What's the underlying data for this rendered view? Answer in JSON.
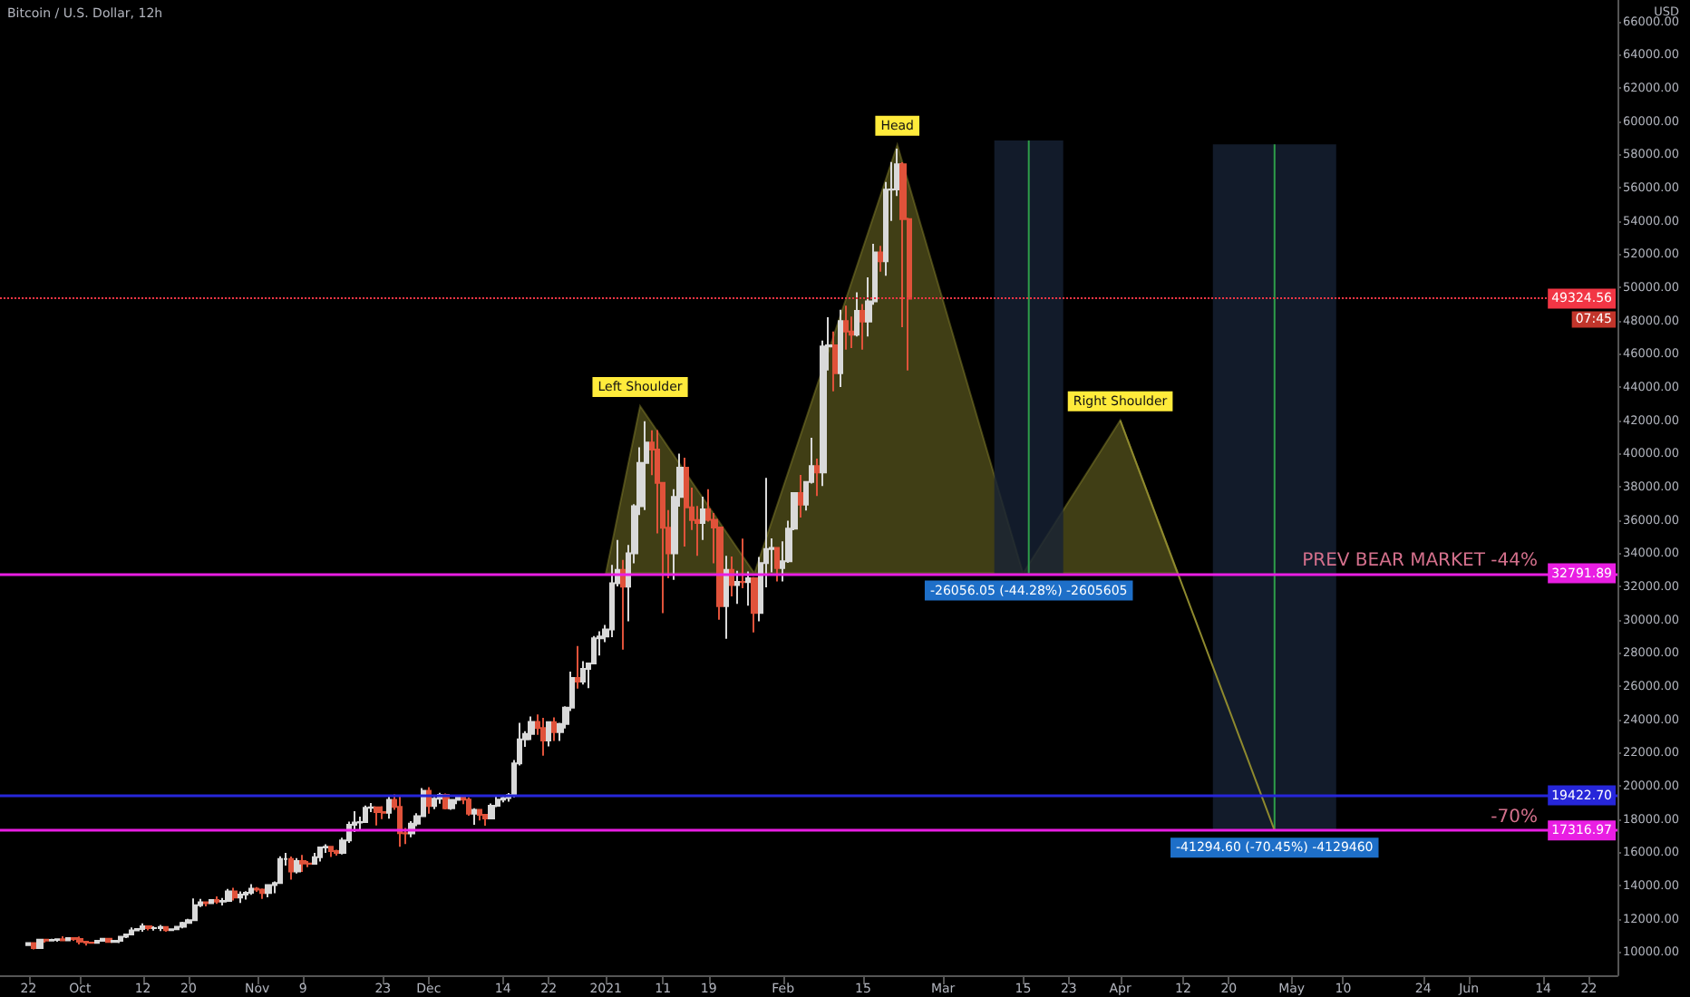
{
  "chart_data": {
    "type": "candlestick",
    "title": "Bitcoin / U.S. Dollar, 12h",
    "ylabel": "USD",
    "xlim": [
      "2020-09-17",
      "2021-06-27"
    ],
    "xticks": [
      {
        "value": "2020-09-22",
        "label": "22"
      },
      {
        "value": "2020-10-01",
        "label": "Oct"
      },
      {
        "value": "2020-10-12",
        "label": "12"
      },
      {
        "value": "2020-10-20",
        "label": "20"
      },
      {
        "value": "2020-11-01",
        "label": "Nov"
      },
      {
        "value": "2020-11-09",
        "label": "9"
      },
      {
        "value": "2020-11-23",
        "label": "23"
      },
      {
        "value": "2020-12-01",
        "label": "Dec"
      },
      {
        "value": "2020-12-14",
        "label": "14"
      },
      {
        "value": "2020-12-22",
        "label": "22"
      },
      {
        "value": "2021-01-01",
        "label": "2021"
      },
      {
        "value": "2021-01-11",
        "label": "11"
      },
      {
        "value": "2021-01-19",
        "label": "19"
      },
      {
        "value": "2021-02-01",
        "label": "Feb"
      },
      {
        "value": "2021-02-15",
        "label": "15"
      },
      {
        "value": "2021-03-01",
        "label": "Mar"
      },
      {
        "value": "2021-03-15",
        "label": "15"
      },
      {
        "value": "2021-03-23",
        "label": "23"
      },
      {
        "value": "2021-04-01",
        "label": "Apr"
      },
      {
        "value": "2021-04-12",
        "label": "12"
      },
      {
        "value": "2021-04-20",
        "label": "20"
      },
      {
        "value": "2021-05-01",
        "label": "May"
      },
      {
        "value": "2021-05-10",
        "label": "10"
      },
      {
        "value": "2021-05-24",
        "label": "24"
      },
      {
        "value": "2021-06-01",
        "label": "Jun"
      },
      {
        "value": "2021-06-14",
        "label": "14"
      },
      {
        "value": "2021-06-22",
        "label": "22"
      }
    ],
    "ylim": [
      8600,
      67300
    ],
    "yticks": [
      {
        "value": 10000,
        "label": "10000.00"
      },
      {
        "value": 12000,
        "label": "12000.00"
      },
      {
        "value": 14000,
        "label": "14000.00"
      },
      {
        "value": 16000,
        "label": "16000.00"
      },
      {
        "value": 18000,
        "label": "18000.00"
      },
      {
        "value": 20000,
        "label": "20000.00"
      },
      {
        "value": 22000,
        "label": "22000.00"
      },
      {
        "value": 24000,
        "label": "24000.00"
      },
      {
        "value": 26000,
        "label": "26000.00"
      },
      {
        "value": 28000,
        "label": "28000.00"
      },
      {
        "value": 30000,
        "label": "30000.00"
      },
      {
        "value": 32000,
        "label": "32000.00"
      },
      {
        "value": 34000,
        "label": "34000.00"
      },
      {
        "value": 36000,
        "label": "36000.00"
      },
      {
        "value": 38000,
        "label": "38000.00"
      },
      {
        "value": 40000,
        "label": "40000.00"
      },
      {
        "value": 42000,
        "label": "42000.00"
      },
      {
        "value": 44000,
        "label": "44000.00"
      },
      {
        "value": 46000,
        "label": "46000.00"
      },
      {
        "value": 48000,
        "label": "48000.00"
      },
      {
        "value": 50000,
        "label": "50000.00"
      },
      {
        "value": 52000,
        "label": "52000.00"
      },
      {
        "value": 54000,
        "label": "54000.00"
      },
      {
        "value": 56000,
        "label": "56000.00"
      },
      {
        "value": 58000,
        "label": "58000.00"
      },
      {
        "value": 60000,
        "label": "60000.00"
      },
      {
        "value": 62000,
        "label": "62000.00"
      },
      {
        "value": 64000,
        "label": "64000.00"
      },
      {
        "value": 66000,
        "label": "66000.00"
      }
    ],
    "series": [
      {
        "type": "candlestick",
        "x": [
          "2020-09-22",
          "2020-09-23",
          "2020-09-24",
          "2020-09-25",
          "2020-09-26",
          "2020-09-27",
          "2020-09-28",
          "2020-09-29",
          "2020-09-30",
          "2020-10-01",
          "2020-10-02",
          "2020-10-03",
          "2020-10-04",
          "2020-10-05",
          "2020-10-06",
          "2020-10-07",
          "2020-10-08",
          "2020-10-09",
          "2020-10-10",
          "2020-10-11",
          "2020-10-12",
          "2020-10-13",
          "2020-10-14",
          "2020-10-15",
          "2020-10-16",
          "2020-10-17",
          "2020-10-18",
          "2020-10-19",
          "2020-10-20",
          "2020-10-21",
          "2020-10-22",
          "2020-10-23",
          "2020-10-24",
          "2020-10-25",
          "2020-10-26",
          "2020-10-27",
          "2020-10-28",
          "2020-10-29",
          "2020-10-30",
          "2020-10-31",
          "2020-11-01",
          "2020-11-02",
          "2020-11-03",
          "2020-11-04",
          "2020-11-05",
          "2020-11-06",
          "2020-11-07",
          "2020-11-08",
          "2020-11-09",
          "2020-11-10",
          "2020-11-11",
          "2020-11-12",
          "2020-11-13",
          "2020-11-14",
          "2020-11-15",
          "2020-11-16",
          "2020-11-17",
          "2020-11-18",
          "2020-11-19",
          "2020-11-20",
          "2020-11-21",
          "2020-11-22",
          "2020-11-23",
          "2020-11-24",
          "2020-11-25",
          "2020-11-26",
          "2020-11-27",
          "2020-11-28",
          "2020-11-29",
          "2020-11-30",
          "2020-12-01",
          "2020-12-02",
          "2020-12-03",
          "2020-12-04",
          "2020-12-05",
          "2020-12-06",
          "2020-12-07",
          "2020-12-08",
          "2020-12-09",
          "2020-12-10",
          "2020-12-11",
          "2020-12-12",
          "2020-12-13",
          "2020-12-14",
          "2020-12-15",
          "2020-12-16",
          "2020-12-17",
          "2020-12-18",
          "2020-12-19",
          "2020-12-20",
          "2020-12-21",
          "2020-12-22",
          "2020-12-23",
          "2020-12-24",
          "2020-12-25",
          "2020-12-26",
          "2020-12-27",
          "2020-12-28",
          "2020-12-29",
          "2020-12-30",
          "2020-12-31",
          "2021-01-01",
          "2021-01-02",
          "2021-01-03",
          "2021-01-04",
          "2021-01-05",
          "2021-01-06",
          "2021-01-07",
          "2021-01-08",
          "2021-01-09",
          "2021-01-10",
          "2021-01-11",
          "2021-01-12",
          "2021-01-13",
          "2021-01-14",
          "2021-01-15",
          "2021-01-16",
          "2021-01-17",
          "2021-01-18",
          "2021-01-19",
          "2021-01-20",
          "2021-01-21",
          "2021-01-22",
          "2021-01-23",
          "2021-01-24",
          "2021-01-25",
          "2021-01-26",
          "2021-01-27",
          "2021-01-28",
          "2021-01-29",
          "2021-01-30",
          "2021-01-31",
          "2021-02-01",
          "2021-02-02",
          "2021-02-03",
          "2021-02-04",
          "2021-02-05",
          "2021-02-06",
          "2021-02-07",
          "2021-02-08",
          "2021-02-09",
          "2021-02-10",
          "2021-02-11",
          "2021-02-12",
          "2021-02-13",
          "2021-02-14",
          "2021-02-15",
          "2021-02-16",
          "2021-02-17",
          "2021-02-18",
          "2021-02-19",
          "2021-02-20",
          "2021-02-21",
          "2021-02-22",
          "2021-02-23"
        ],
        "ohlc": [
          [
            10420,
            10580,
            10360,
            10530
          ],
          [
            10530,
            10540,
            10150,
            10240
          ],
          [
            10240,
            10790,
            10200,
            10740
          ],
          [
            10740,
            10760,
            10560,
            10690
          ],
          [
            10690,
            10790,
            10650,
            10730
          ],
          [
            10730,
            10800,
            10620,
            10770
          ],
          [
            10770,
            10950,
            10650,
            10700
          ],
          [
            10700,
            10860,
            10650,
            10840
          ],
          [
            10840,
            10850,
            10670,
            10780
          ],
          [
            10780,
            10930,
            10450,
            10620
          ],
          [
            10620,
            10640,
            10380,
            10570
          ],
          [
            10570,
            10600,
            10500,
            10550
          ],
          [
            10550,
            10700,
            10530,
            10670
          ],
          [
            10670,
            10800,
            10620,
            10790
          ],
          [
            10790,
            10800,
            10550,
            10600
          ],
          [
            10600,
            10690,
            10570,
            10670
          ],
          [
            10670,
            10960,
            10530,
            10920
          ],
          [
            10920,
            11100,
            10830,
            11060
          ],
          [
            11060,
            11480,
            11060,
            11300
          ],
          [
            11300,
            11440,
            11280,
            11380
          ],
          [
            11380,
            11720,
            11220,
            11540
          ],
          [
            11540,
            11560,
            11300,
            11430
          ],
          [
            11430,
            11550,
            11290,
            11430
          ],
          [
            11430,
            11630,
            11260,
            11510
          ],
          [
            11510,
            11540,
            11220,
            11320
          ],
          [
            11320,
            11420,
            11310,
            11370
          ],
          [
            11370,
            11530,
            11350,
            11520
          ],
          [
            11520,
            11820,
            11420,
            11750
          ],
          [
            11750,
            12000,
            11690,
            11920
          ],
          [
            11920,
            13220,
            11900,
            12820
          ],
          [
            12820,
            13200,
            12700,
            12990
          ],
          [
            12990,
            13030,
            12740,
            12940
          ],
          [
            12940,
            13170,
            12900,
            13130
          ],
          [
            13130,
            13350,
            12900,
            13030
          ],
          [
            13030,
            13250,
            12800,
            13070
          ],
          [
            13070,
            13790,
            13060,
            13650
          ],
          [
            13650,
            13860,
            13100,
            13280
          ],
          [
            13280,
            13650,
            12950,
            13460
          ],
          [
            13460,
            13660,
            13150,
            13560
          ],
          [
            13560,
            14080,
            13440,
            13810
          ],
          [
            13810,
            13900,
            13620,
            13760
          ],
          [
            13760,
            13820,
            13200,
            13550
          ],
          [
            13550,
            14070,
            13290,
            14030
          ],
          [
            14030,
            14250,
            13540,
            14150
          ],
          [
            14150,
            15760,
            14100,
            15590
          ],
          [
            15590,
            15970,
            15200,
            15590
          ],
          [
            15590,
            15750,
            14350,
            14840
          ],
          [
            14840,
            15650,
            14720,
            15480
          ],
          [
            15480,
            15840,
            14820,
            15330
          ],
          [
            15330,
            15480,
            15110,
            15310
          ],
          [
            15310,
            15960,
            15290,
            15700
          ],
          [
            15700,
            16340,
            15440,
            16290
          ],
          [
            16290,
            16480,
            15960,
            16330
          ],
          [
            16330,
            16330,
            15720,
            16070
          ],
          [
            16070,
            16150,
            15800,
            15960
          ],
          [
            15960,
            16880,
            15870,
            16720
          ],
          [
            16720,
            17850,
            16560,
            17650
          ],
          [
            17650,
            18480,
            17220,
            17790
          ],
          [
            17790,
            18150,
            17350,
            17820
          ],
          [
            17820,
            18810,
            17760,
            18680
          ],
          [
            18680,
            18960,
            18420,
            18710
          ],
          [
            18710,
            18740,
            17620,
            18420
          ],
          [
            18420,
            18770,
            18000,
            18380
          ],
          [
            18380,
            19420,
            18030,
            19160
          ],
          [
            19160,
            19490,
            18550,
            18730
          ],
          [
            18730,
            19370,
            16330,
            17150
          ],
          [
            17150,
            17470,
            16500,
            17140
          ],
          [
            17140,
            17880,
            16900,
            17720
          ],
          [
            17720,
            18350,
            17570,
            18180
          ],
          [
            18180,
            19860,
            18180,
            19700
          ],
          [
            19700,
            19920,
            18330,
            18790
          ],
          [
            18790,
            19330,
            18600,
            19220
          ],
          [
            19220,
            19580,
            18920,
            19450
          ],
          [
            19450,
            19540,
            18580,
            18650
          ],
          [
            18650,
            19180,
            18550,
            19150
          ],
          [
            19150,
            19420,
            18900,
            19360
          ],
          [
            19360,
            19420,
            18900,
            19170
          ],
          [
            19170,
            19300,
            18200,
            18320
          ],
          [
            18320,
            18650,
            17650,
            18550
          ],
          [
            18550,
            18570,
            17920,
            18250
          ],
          [
            18250,
            18280,
            17600,
            18040
          ],
          [
            18040,
            18940,
            18020,
            18800
          ],
          [
            18800,
            19400,
            18720,
            19170
          ],
          [
            19170,
            19350,
            19000,
            19270
          ],
          [
            19270,
            19570,
            19050,
            19440
          ],
          [
            19440,
            21560,
            19300,
            21350
          ],
          [
            21350,
            23800,
            21230,
            22800
          ],
          [
            22800,
            23290,
            22350,
            23130
          ],
          [
            23130,
            24170,
            22760,
            23850
          ],
          [
            23850,
            24300,
            23070,
            23480
          ],
          [
            23480,
            24100,
            21820,
            22730
          ],
          [
            22730,
            23840,
            22370,
            23830
          ],
          [
            23830,
            24120,
            22700,
            23240
          ],
          [
            23240,
            23800,
            22700,
            23730
          ],
          [
            23730,
            24790,
            23450,
            24710
          ],
          [
            24710,
            26870,
            24500,
            26490
          ],
          [
            26490,
            28420,
            25850,
            26280
          ],
          [
            26280,
            27500,
            26100,
            27040
          ],
          [
            27040,
            27400,
            25880,
            27370
          ],
          [
            27370,
            29020,
            27330,
            28880
          ],
          [
            28880,
            29300,
            27850,
            28990
          ],
          [
            28990,
            29680,
            28650,
            29410
          ],
          [
            29410,
            33300,
            28950,
            32200
          ],
          [
            32200,
            34800,
            32000,
            33000
          ],
          [
            33000,
            33600,
            28200,
            31990
          ],
          [
            31990,
            34500,
            29900,
            33990
          ],
          [
            33990,
            36950,
            33400,
            36830
          ],
          [
            36830,
            40380,
            36300,
            39440
          ],
          [
            39440,
            41950,
            36600,
            40670
          ],
          [
            40670,
            41400,
            38700,
            40240
          ],
          [
            40240,
            41420,
            35200,
            38240
          ],
          [
            38240,
            38270,
            30400,
            35540
          ],
          [
            35540,
            36600,
            32500,
            34000
          ],
          [
            34000,
            37850,
            32400,
            37390
          ],
          [
            37390,
            40000,
            36800,
            39150
          ],
          [
            39150,
            39750,
            34400,
            36770
          ],
          [
            36770,
            37950,
            35400,
            36000
          ],
          [
            36000,
            36850,
            33850,
            35820
          ],
          [
            35820,
            37400,
            34800,
            36640
          ],
          [
            36640,
            37850,
            35900,
            36010
          ],
          [
            36010,
            36420,
            33400,
            35550
          ],
          [
            35550,
            35600,
            30000,
            30820
          ],
          [
            30820,
            33850,
            28850,
            33000
          ],
          [
            33000,
            33800,
            31400,
            32090
          ],
          [
            32090,
            32950,
            30950,
            32280
          ],
          [
            32280,
            34880,
            31900,
            32260
          ],
          [
            32260,
            32900,
            30840,
            32500
          ],
          [
            32500,
            32560,
            29240,
            30410
          ],
          [
            30410,
            33780,
            29900,
            33410
          ],
          [
            33410,
            38530,
            31950,
            34260
          ],
          [
            34260,
            34900,
            32850,
            34320
          ],
          [
            34320,
            34340,
            32300,
            33110
          ],
          [
            33110,
            34720,
            32300,
            33520
          ],
          [
            33520,
            35960,
            33420,
            35480
          ],
          [
            35480,
            37660,
            35380,
            37620
          ],
          [
            37620,
            38710,
            36150,
            36930
          ],
          [
            36930,
            38310,
            36570,
            38290
          ],
          [
            38290,
            40950,
            38200,
            39250
          ],
          [
            39250,
            39700,
            37450,
            38870
          ],
          [
            38870,
            46800,
            38050,
            46450
          ],
          [
            46450,
            48200,
            45000,
            46510
          ],
          [
            46510,
            47350,
            43750,
            44840
          ],
          [
            44840,
            48650,
            44000,
            47970
          ],
          [
            47970,
            48900,
            46250,
            47350
          ],
          [
            47350,
            48250,
            46350,
            47160
          ],
          [
            47160,
            49700,
            47050,
            48590
          ],
          [
            48590,
            49000,
            46250,
            47950
          ],
          [
            47950,
            50600,
            47050,
            49160
          ],
          [
            49160,
            52620,
            48950,
            52110
          ],
          [
            52110,
            52500,
            50950,
            51570
          ],
          [
            51570,
            56350,
            50700,
            55890
          ],
          [
            55890,
            57550,
            54000,
            55900
          ],
          [
            55900,
            58350,
            55500,
            57410
          ],
          [
            57410,
            57530,
            47600,
            54110
          ],
          [
            54110,
            54200,
            45000,
            49324.56
          ]
        ]
      },
      {
        "type": "area",
        "color": "#8f8a2e",
        "x": [
          "2021-01-01",
          "2021-01-07",
          "2021-01-27",
          "2021-02-21",
          "2021-03-15",
          "2021-04-01",
          "2021-04-11"
        ],
        "values": [
          32790,
          42860,
          32790,
          58580,
          32790,
          42000,
          32790
        ]
      },
      {
        "type": "line",
        "color": "#8f8a2e",
        "x": [
          "2021-04-01",
          "2021-04-28"
        ],
        "values": [
          42000,
          17320
        ]
      },
      {
        "type": "bar",
        "color": "#172235",
        "x": [
          "2021-03-16",
          "2021-04-28"
        ],
        "base": [
          58844,
          58615
        ],
        "values": [
          -26056.05,
          -41294.6
        ],
        "value_labels": [
          "-26056.05 (-44.28%) -2605605",
          "-41294.60 (-70.45%) -4129460"
        ]
      }
    ],
    "ref_lines": [
      {
        "axis": "y",
        "value": 49324.56,
        "label": "49324.56",
        "color": "#f23645",
        "line_style": "dotted"
      },
      {
        "axis": "y",
        "value": 32791.89,
        "label": "32791.89",
        "color": "#e91ee3"
      },
      {
        "axis": "y",
        "value": 19422.7,
        "label": "19422.70",
        "color": "#2626d9"
      },
      {
        "axis": "y",
        "value": 17316.97,
        "label": "17316.97",
        "color": "#e91ee3"
      }
    ],
    "annotations": [
      {
        "text": "Left Shoulder",
        "x": "2021-01-07",
        "y": 42860
      },
      {
        "text": "Head",
        "x": "2021-02-21",
        "y": 58580
      },
      {
        "text": "Right Shoulder",
        "x": "2021-04-01",
        "y": 42000
      },
      {
        "text": "PREV BEAR MARKET -44%",
        "y": 32791.89
      },
      {
        "text": "-70%",
        "y": 17316.97
      },
      "07:45"
    ]
  }
}
